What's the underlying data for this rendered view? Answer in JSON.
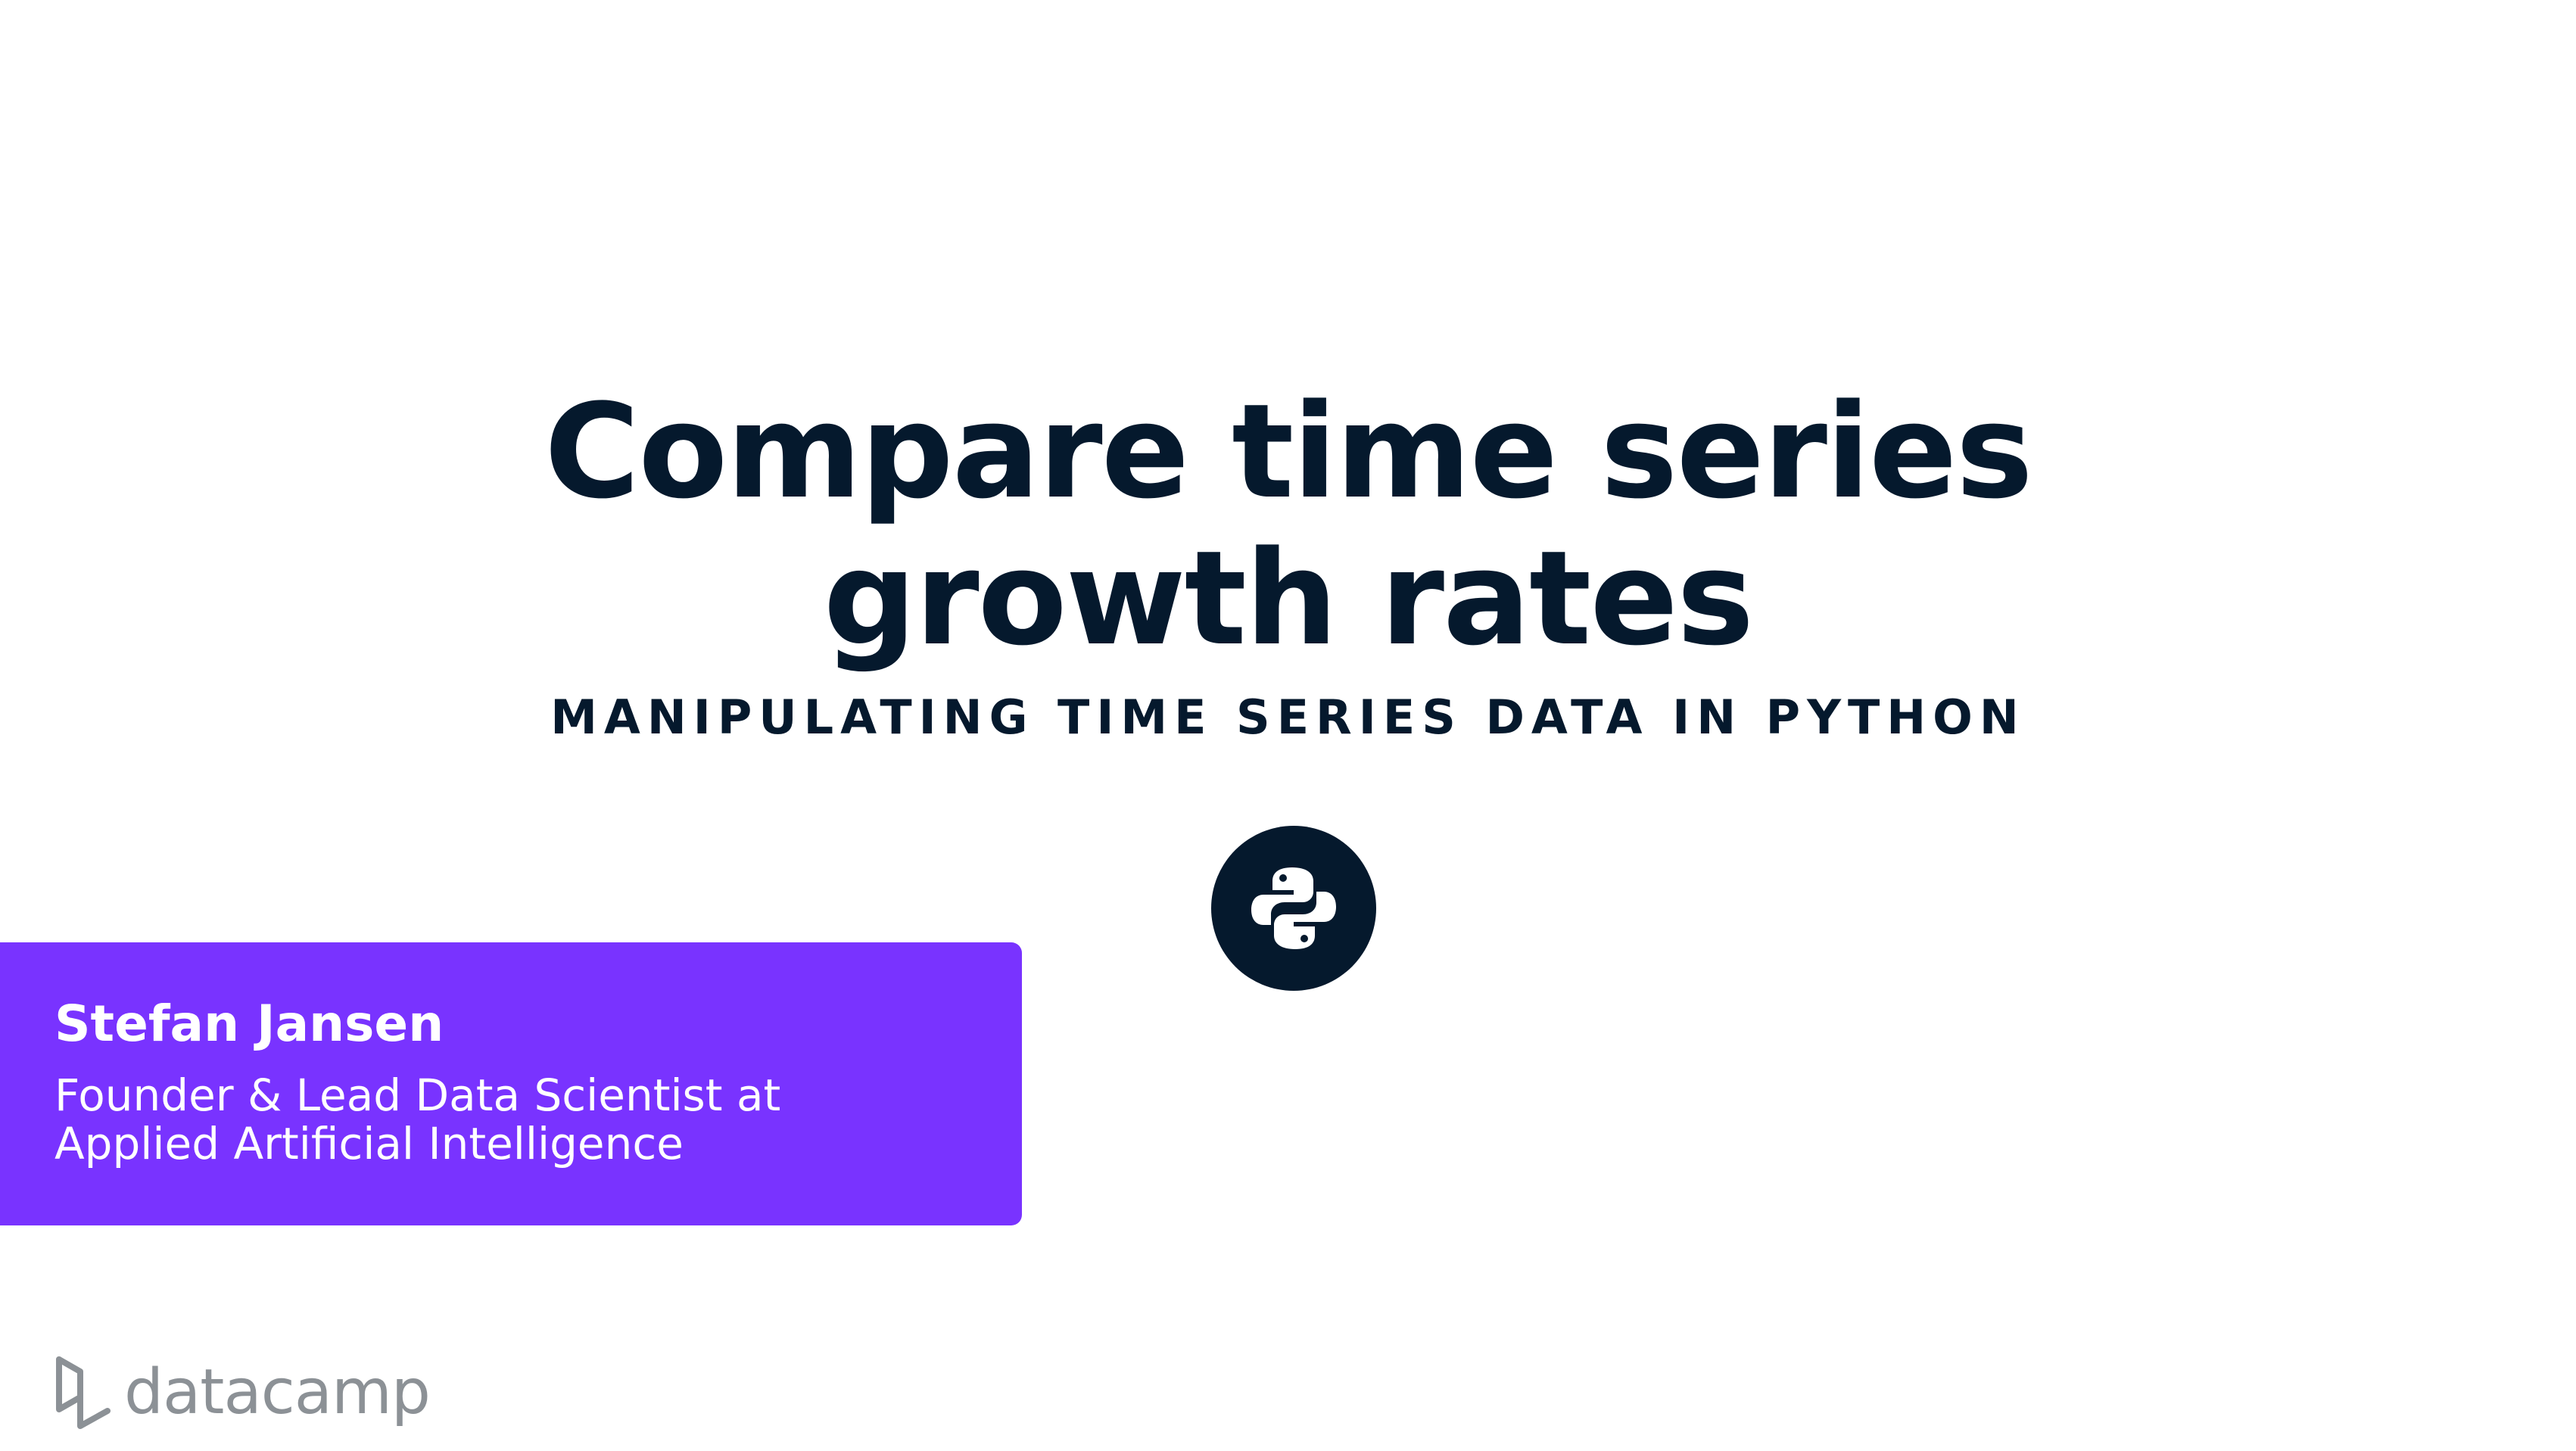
{
  "slide": {
    "title_line1": "Compare time series",
    "title_line2": "growth rates",
    "course_name": "MANIPULATING TIME SERIES DATA IN PYTHON",
    "badge_icon": "python-logo-icon"
  },
  "author": {
    "name": "Stefan Jansen",
    "role_line1": "Founder & Lead Data Scientist at",
    "role_line2": "Applied Artificial Intelligence"
  },
  "brand": {
    "logo_text": "datacamp",
    "logo_icon": "datacamp-logo-icon"
  },
  "colors": {
    "title": "#05192d",
    "author_box": "#7933ff",
    "logo_gray": "#8c9196",
    "background": "#ffffff"
  }
}
